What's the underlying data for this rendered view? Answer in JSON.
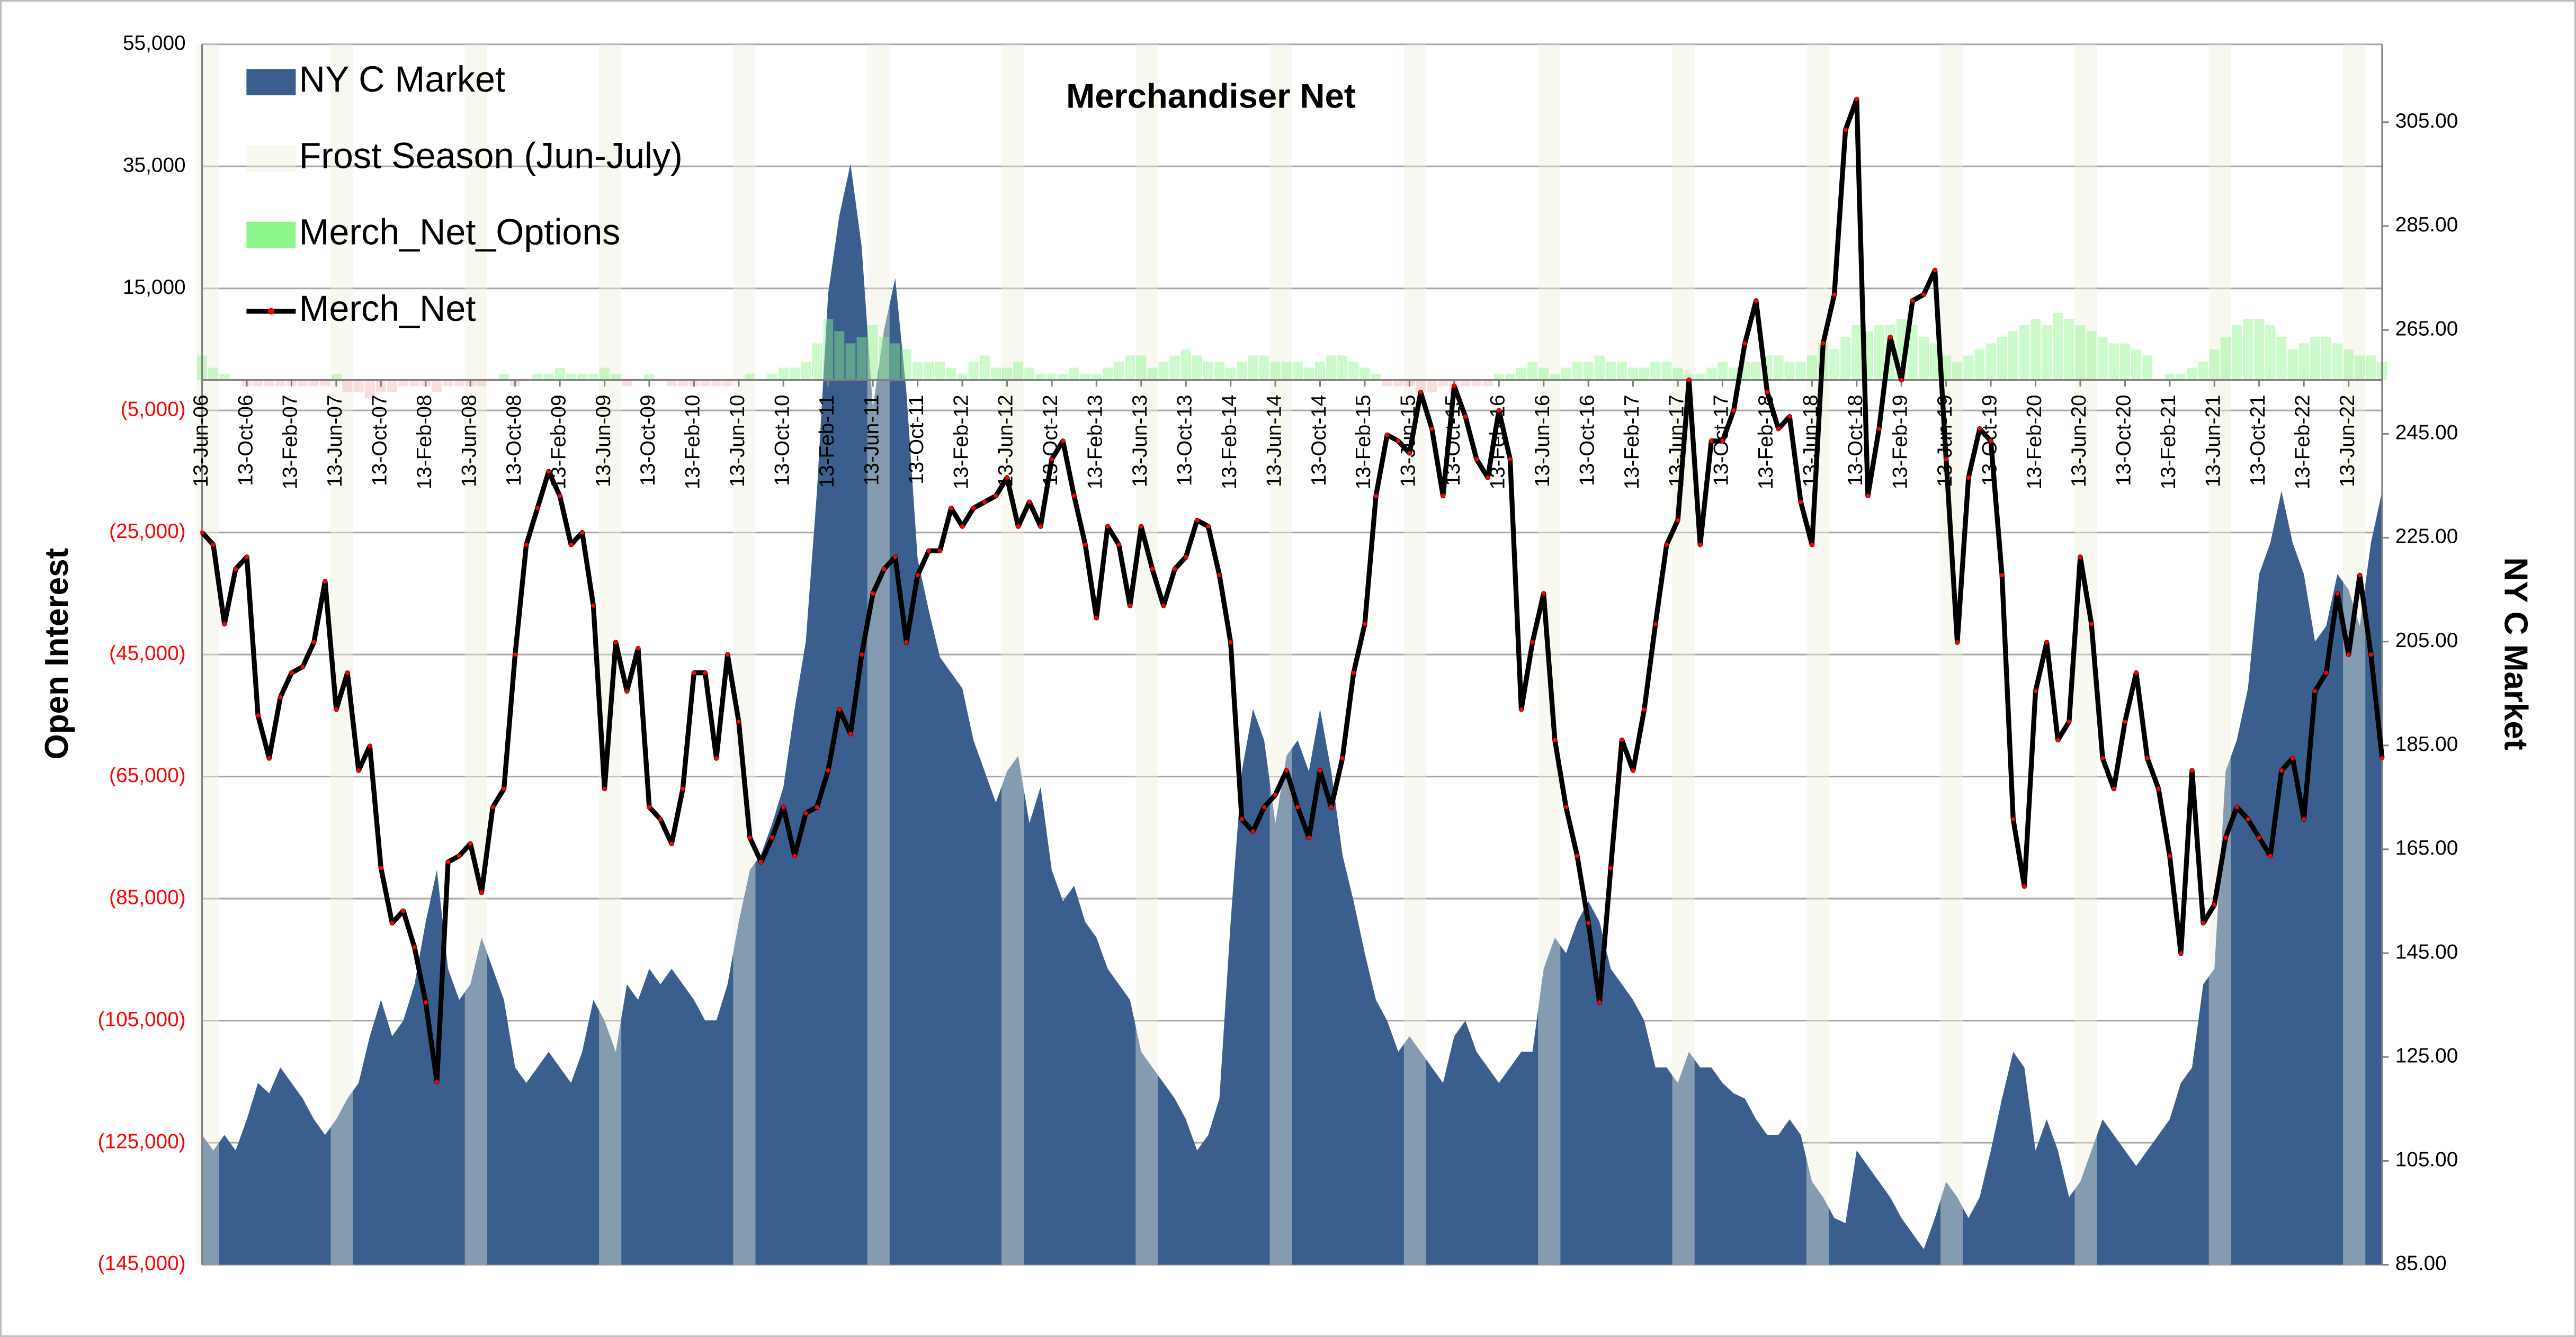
{
  "chart_data": {
    "type": "combo",
    "title": "Merchandiser  Net",
    "ylabel": "Open Interest",
    "y2label": "NY C Market",
    "categories": [
      "13-Jun-06",
      null,
      null,
      null,
      "13-Oct-06",
      null,
      null,
      null,
      "13-Feb-07",
      null,
      null,
      null,
      "13-Jun-07",
      null,
      null,
      null,
      "13-Oct-07",
      null,
      null,
      null,
      "13-Feb-08",
      null,
      null,
      null,
      "13-Jun-08",
      null,
      null,
      null,
      "13-Oct-08",
      null,
      null,
      null,
      "13-Feb-09",
      null,
      null,
      null,
      "13-Jun-09",
      null,
      null,
      null,
      "13-Oct-09",
      null,
      null,
      null,
      "13-Feb-10",
      null,
      null,
      null,
      "13-Jun-10",
      null,
      null,
      null,
      "13-Oct-10",
      null,
      null,
      null,
      "13-Feb-11",
      null,
      null,
      null,
      "13-Jun-11",
      null,
      null,
      null,
      "13-Oct-11",
      null,
      null,
      null,
      "13-Feb-12",
      null,
      null,
      null,
      "13-Jun-12",
      null,
      null,
      null,
      "13-Oct-12",
      null,
      null,
      null,
      "13-Feb-13",
      null,
      null,
      null,
      "13-Jun-13",
      null,
      null,
      null,
      "13-Oct-13",
      null,
      null,
      null,
      "13-Feb-14",
      null,
      null,
      null,
      "13-Jun-14",
      null,
      null,
      null,
      "13-Oct-14",
      null,
      null,
      null,
      "13-Feb-15",
      null,
      null,
      null,
      "13-Jun-15",
      null,
      null,
      null,
      "13-Oct-15",
      null,
      null,
      null,
      "13-Feb-16",
      null,
      null,
      null,
      "13-Jun-16",
      null,
      null,
      null,
      "13-Oct-16",
      null,
      null,
      null,
      "13-Feb-17",
      null,
      null,
      null,
      "13-Jun-17",
      null,
      null,
      null,
      "13-Oct-17",
      null,
      null,
      null,
      "13-Feb-18",
      null,
      null,
      null,
      "13-Jun-18",
      null,
      null,
      null,
      "13-Oct-18",
      null,
      null,
      null,
      "13-Feb-19",
      null,
      null,
      null,
      "13-Jun-19",
      null,
      null,
      null,
      "13-Oct-19",
      null,
      null,
      null,
      "13-Feb-20",
      null,
      null,
      null,
      "13-Jun-20",
      null,
      null,
      null,
      "13-Oct-20",
      null,
      null,
      null,
      "13-Feb-21",
      null,
      null,
      null,
      "13-Jun-21",
      null,
      null,
      null,
      "13-Oct-21",
      null,
      null,
      null,
      "13-Feb-22",
      null,
      null,
      null,
      "13-Jun-22",
      null,
      null,
      null
    ],
    "series": [
      {
        "name": "NY C Market",
        "type": "area",
        "axis": "y2",
        "color": "#3a5f8f",
        "values": [
          110,
          107,
          110,
          107,
          113,
          120,
          118,
          123,
          120,
          117,
          113,
          110,
          113,
          117,
          120,
          129,
          136,
          129,
          132,
          139,
          151,
          161,
          142,
          136,
          139,
          148,
          142,
          136,
          123,
          120,
          123,
          126,
          123,
          120,
          126,
          136,
          132,
          126,
          139,
          136,
          142,
          139,
          142,
          139,
          136,
          132,
          132,
          139,
          151,
          161,
          164,
          170,
          177,
          192,
          205,
          234,
          272,
          287,
          297,
          281,
          250,
          265,
          275,
          253,
          221,
          211,
          202,
          199,
          196,
          186,
          180,
          174,
          180,
          183,
          170,
          177,
          161,
          155,
          158,
          151,
          148,
          142,
          139,
          136,
          126,
          123,
          120,
          117,
          113,
          107,
          110,
          117,
          151,
          180,
          192,
          186,
          170,
          183,
          186,
          180,
          192,
          180,
          164,
          155,
          145,
          136,
          132,
          126,
          129,
          126,
          123,
          120,
          129,
          132,
          126,
          123,
          120,
          123,
          126,
          126,
          142,
          148,
          145,
          151,
          155,
          151,
          142,
          139,
          136,
          132,
          123,
          123,
          120,
          126,
          123,
          123,
          120,
          118,
          117,
          113,
          110,
          110,
          113,
          110,
          101,
          98,
          94,
          93,
          107,
          104,
          101,
          98,
          94,
          91,
          88,
          94,
          101,
          98,
          94,
          98,
          107,
          117,
          126,
          123,
          107,
          113,
          107,
          98,
          101,
          107,
          113,
          110,
          107,
          104,
          107,
          110,
          113,
          120,
          123,
          139,
          142,
          180,
          186,
          196,
          218,
          224,
          234,
          224,
          218,
          205,
          208,
          218,
          215,
          208,
          224,
          234
        ]
      },
      {
        "name": "Frost Season (Jun-July)",
        "type": "band",
        "color": "#eeeedd",
        "values": [
          55000,
          55000,
          null,
          null,
          null,
          null,
          null,
          null,
          null,
          null,
          null,
          null,
          55000,
          55000,
          null,
          null,
          null,
          null,
          null,
          null,
          null,
          null,
          null,
          null,
          55000,
          55000,
          null,
          null,
          null,
          null,
          null,
          null,
          null,
          null,
          null,
          null,
          55000,
          55000,
          null,
          null,
          null,
          null,
          null,
          null,
          null,
          null,
          null,
          null,
          55000,
          55000,
          null,
          null,
          null,
          null,
          null,
          null,
          null,
          null,
          null,
          null,
          55000,
          55000,
          null,
          null,
          null,
          null,
          null,
          null,
          null,
          null,
          null,
          null,
          55000,
          55000,
          null,
          null,
          null,
          null,
          null,
          null,
          null,
          null,
          null,
          null,
          55000,
          55000,
          null,
          null,
          null,
          null,
          null,
          null,
          null,
          null,
          null,
          null,
          55000,
          55000,
          null,
          null,
          null,
          null,
          null,
          null,
          null,
          null,
          null,
          null,
          55000,
          55000,
          null,
          null,
          null,
          null,
          null,
          null,
          null,
          null,
          null,
          null,
          55000,
          55000,
          null,
          null,
          null,
          null,
          null,
          null,
          null,
          null,
          null,
          null,
          55000,
          55000,
          null,
          null,
          null,
          null,
          null,
          null,
          null,
          null,
          null,
          null,
          55000,
          55000,
          null,
          null,
          null,
          null,
          null,
          null,
          null,
          null,
          null,
          null,
          55000,
          55000,
          null,
          null,
          null,
          null,
          null,
          null,
          null,
          null,
          null,
          null,
          55000,
          55000,
          null,
          null,
          null,
          null,
          null,
          null,
          null,
          null,
          null,
          null,
          55000,
          55000,
          null,
          null,
          null,
          null,
          null,
          null,
          null,
          null,
          null,
          null,
          55000,
          55000,
          null,
          null
        ]
      },
      {
        "name": "Merch_Net_Options",
        "type": "bar",
        "color": "#8cf58c",
        "negative_color": "#f4b6b6",
        "values": [
          4000,
          2000,
          1000,
          0,
          -1000,
          -1000,
          -1000,
          -1000,
          -1000,
          -1000,
          -1000,
          -1000,
          1000,
          -2000,
          -2000,
          -3000,
          -2000,
          -2000,
          -1000,
          -1000,
          -1000,
          -2000,
          -1000,
          -1000,
          -1000,
          -1000,
          0,
          1000,
          -1000,
          0,
          1000,
          1000,
          2000,
          1000,
          1000,
          1000,
          2000,
          1000,
          -1000,
          0,
          1000,
          0,
          -1000,
          -1000,
          -1000,
          -1000,
          -1000,
          -1000,
          0,
          1000,
          0,
          1000,
          2000,
          2000,
          3000,
          6000,
          10000,
          8000,
          6000,
          7000,
          9000,
          7000,
          6000,
          5000,
          3000,
          3000,
          3000,
          2000,
          1000,
          3000,
          4000,
          2000,
          2000,
          3000,
          2000,
          1000,
          1000,
          1000,
          2000,
          1000,
          1000,
          2000,
          3000,
          4000,
          4000,
          2000,
          3000,
          4000,
          5000,
          4000,
          3000,
          3000,
          2000,
          3000,
          4000,
          4000,
          3000,
          3000,
          3000,
          2000,
          3000,
          4000,
          4000,
          3000,
          2000,
          1000,
          -1000,
          -1000,
          -1000,
          -2000,
          -2000,
          -1000,
          -2000,
          -1000,
          -1000,
          -1000,
          1000,
          1000,
          2000,
          3000,
          2000,
          1000,
          2000,
          3000,
          3000,
          4000,
          3000,
          3000,
          2000,
          2000,
          3000,
          3000,
          2000,
          1000,
          1000,
          2000,
          3000,
          2000,
          3000,
          3000,
          4000,
          4000,
          3000,
          3000,
          4000,
          6000,
          5000,
          7000,
          9000,
          8000,
          9000,
          9000,
          10000,
          9000,
          7000,
          6000,
          4000,
          3000,
          4000,
          5000,
          6000,
          7000,
          8000,
          9000,
          10000,
          9000,
          11000,
          10000,
          9000,
          8000,
          7000,
          6000,
          6000,
          5000,
          4000,
          0,
          1000,
          1000,
          2000,
          3000,
          5000,
          7000,
          9000,
          10000,
          10000,
          9000,
          7000,
          5000,
          6000,
          7000,
          7000,
          6000,
          5000,
          4000,
          4000,
          3000
        ]
      },
      {
        "name": "Merch_Net",
        "type": "line",
        "color": "#000000",
        "marker_color": "#ff0000",
        "values": [
          -25000,
          -27000,
          -40000,
          -31000,
          -29000,
          -55000,
          -62000,
          -52000,
          -48000,
          -47000,
          -43000,
          -33000,
          -54000,
          -48000,
          -64000,
          -60000,
          -80000,
          -89000,
          -87000,
          -93000,
          -102000,
          -115000,
          -79000,
          -78000,
          -76000,
          -84000,
          -70000,
          -67000,
          -45000,
          -27000,
          -21000,
          -15000,
          -19000,
          -27000,
          -25000,
          -37000,
          -67000,
          -43000,
          -51000,
          -44000,
          -70000,
          -72000,
          -76000,
          -67000,
          -48000,
          -48000,
          -62000,
          -45000,
          -56000,
          -75000,
          -79000,
          -75000,
          -70000,
          -78000,
          -71000,
          -70000,
          -64000,
          -54000,
          -58000,
          -45000,
          -35000,
          -31000,
          -29000,
          -43000,
          -32000,
          -28000,
          -28000,
          -21000,
          -24000,
          -21000,
          -20000,
          -19000,
          -16000,
          -24000,
          -20000,
          -24000,
          -13000,
          -10000,
          -19000,
          -27000,
          -39000,
          -24000,
          -27000,
          -37000,
          -24000,
          -31000,
          -37000,
          -31000,
          -29000,
          -23000,
          -24000,
          -32000,
          -43000,
          -72000,
          -74000,
          -70000,
          -68000,
          -64000,
          -70000,
          -75000,
          -64000,
          -70000,
          -62000,
          -48000,
          -40000,
          -19000,
          -9000,
          -10000,
          -12000,
          -2000,
          -8000,
          -19000,
          -1000,
          -6000,
          -13000,
          -16000,
          -5000,
          -13000,
          -54000,
          -43000,
          -35000,
          -59000,
          -70000,
          -78000,
          -89000,
          -102000,
          -80000,
          -59000,
          -64000,
          -54000,
          -40000,
          -27000,
          -23000,
          0,
          -27000,
          -10000,
          -10000,
          -5000,
          6000,
          13000,
          -2000,
          -8000,
          -6000,
          -20000,
          -27000,
          6000,
          14000,
          41000,
          46000,
          -19000,
          -8000,
          7000,
          0,
          13000,
          14000,
          18000,
          -13000,
          -43000,
          -16000,
          -8000,
          -10000,
          -32000,
          -72000,
          -83000,
          -51000,
          -43000,
          -59000,
          -56000,
          -29000,
          -40000,
          -62000,
          -67000,
          -56000,
          -48000,
          -62000,
          -67000,
          -78000,
          -94000,
          -64000,
          -89000,
          -86000,
          -75000,
          -70000,
          -72000,
          -75000,
          -78000,
          -64000,
          -62000,
          -72000,
          -51000,
          -48000,
          -35000,
          -45000,
          -32000,
          -45000,
          -62000
        ]
      }
    ],
    "ylim": [
      -145000,
      55000
    ],
    "yticks": [
      {
        "value": 55000,
        "label": "55,000"
      },
      {
        "value": 35000,
        "label": "35,000"
      },
      {
        "value": 15000,
        "label": "15,000"
      },
      {
        "value": -5000,
        "label": "(5,000)"
      },
      {
        "value": -25000,
        "label": "(25,000)"
      },
      {
        "value": -45000,
        "label": "(45,000)"
      },
      {
        "value": -65000,
        "label": "(65,000)"
      },
      {
        "value": -85000,
        "label": "(85,000)"
      },
      {
        "value": -105000,
        "label": "(105,000)"
      },
      {
        "value": -125000,
        "label": "(125,000)"
      },
      {
        "value": -145000,
        "label": "(145,000)"
      }
    ],
    "negative_tick_color": "#ff0000",
    "y2lim": [
      85,
      320
    ],
    "y2ticks": [
      {
        "value": 85,
        "label": "85.00"
      },
      {
        "value": 105,
        "label": "105.00"
      },
      {
        "value": 125,
        "label": "125.00"
      },
      {
        "value": 145,
        "label": "145.00"
      },
      {
        "value": 165,
        "label": "165.00"
      },
      {
        "value": 185,
        "label": "185.00"
      },
      {
        "value": 205,
        "label": "205.00"
      },
      {
        "value": 225,
        "label": "225.00"
      },
      {
        "value": 245,
        "label": "245.00"
      },
      {
        "value": 265,
        "label": "265.00"
      },
      {
        "value": 285,
        "label": "285.00"
      },
      {
        "value": 305,
        "label": "305.00"
      }
    ],
    "grid": true,
    "legend": "top-left"
  }
}
